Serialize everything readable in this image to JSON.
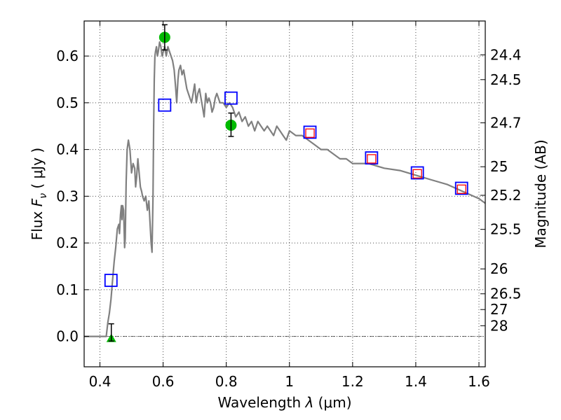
{
  "chart_data": {
    "type": "scatter",
    "xlabel": {
      "prefix": "Wavelength  ",
      "symbol": "λ",
      "unit": " (μm)"
    },
    "ylabel": {
      "prefix": "Flux  ",
      "symbol": "F",
      "subscript": "ν",
      "unit": "  ( μJy )"
    },
    "y2label": "Magnitude (AB)",
    "xlim": [
      0.35,
      1.62
    ],
    "ylim": [
      -0.065,
      0.675
    ],
    "grid": true,
    "x_ticks": [
      0.4,
      0.6,
      0.8,
      1.0,
      1.2,
      1.4,
      1.6
    ],
    "x_tick_labels": [
      "0.4",
      "0.6",
      "0.8",
      "1",
      "1.2",
      "1.4",
      "1.6"
    ],
    "y_ticks": [
      0.0,
      0.1,
      0.2,
      0.3,
      0.4,
      0.5,
      0.6
    ],
    "y_tick_labels": [
      "0.0",
      "0.1",
      "0.2",
      "0.3",
      "0.4",
      "0.5",
      "0.6"
    ],
    "y2_ticks": [
      {
        "label": "24.4",
        "flux": 0.6026
      },
      {
        "label": "24.5",
        "flux": 0.5495
      },
      {
        "label": "24.7",
        "flux": 0.4571
      },
      {
        "label": "25",
        "flux": 0.3631
      },
      {
        "label": "25.2",
        "flux": 0.302
      },
      {
        "label": "25.5",
        "flux": 0.2291
      },
      {
        "label": "26",
        "flux": 0.1445
      },
      {
        "label": "26.5",
        "flux": 0.0912
      },
      {
        "label": "27",
        "flux": 0.0575
      },
      {
        "label": "28",
        "flux": 0.0229
      }
    ],
    "series": [
      {
        "type": "line",
        "color": "#808080",
        "x": [
          0.35,
          0.42,
          0.425,
          0.43,
          0.435,
          0.44,
          0.445,
          0.45,
          0.455,
          0.46,
          0.462,
          0.465,
          0.468,
          0.47,
          0.472,
          0.475,
          0.478,
          0.48,
          0.483,
          0.486,
          0.49,
          0.495,
          0.5,
          0.505,
          0.51,
          0.513,
          0.516,
          0.52,
          0.524,
          0.528,
          0.532,
          0.535,
          0.54,
          0.545,
          0.55,
          0.555,
          0.558,
          0.562,
          0.565,
          0.568,
          0.57,
          0.572,
          0.574,
          0.576,
          0.579,
          0.582,
          0.585,
          0.589,
          0.593,
          0.597,
          0.601,
          0.605,
          0.61,
          0.615,
          0.62,
          0.625,
          0.63,
          0.635,
          0.64,
          0.643,
          0.647,
          0.65,
          0.655,
          0.66,
          0.665,
          0.67,
          0.675,
          0.68,
          0.69,
          0.695,
          0.7,
          0.705,
          0.71,
          0.715,
          0.72,
          0.725,
          0.73,
          0.735,
          0.74,
          0.745,
          0.75,
          0.755,
          0.76,
          0.765,
          0.77,
          0.78,
          0.79,
          0.8,
          0.81,
          0.82,
          0.83,
          0.84,
          0.85,
          0.86,
          0.87,
          0.88,
          0.89,
          0.9,
          0.91,
          0.92,
          0.93,
          0.94,
          0.95,
          0.96,
          0.97,
          0.98,
          0.99,
          1.0,
          1.02,
          1.04,
          1.06,
          1.08,
          1.1,
          1.12,
          1.14,
          1.16,
          1.18,
          1.2,
          1.25,
          1.3,
          1.35,
          1.4,
          1.45,
          1.5,
          1.55,
          1.6,
          1.62
        ],
        "y": [
          0.0,
          0.0,
          0.03,
          0.05,
          0.08,
          0.12,
          0.16,
          0.19,
          0.23,
          0.24,
          0.22,
          0.26,
          0.28,
          0.25,
          0.28,
          0.27,
          0.19,
          0.21,
          0.33,
          0.4,
          0.42,
          0.4,
          0.35,
          0.37,
          0.36,
          0.32,
          0.34,
          0.38,
          0.35,
          0.32,
          0.31,
          0.3,
          0.29,
          0.3,
          0.27,
          0.29,
          0.25,
          0.2,
          0.18,
          0.3,
          0.45,
          0.55,
          0.6,
          0.61,
          0.62,
          0.6,
          0.61,
          0.63,
          0.62,
          0.6,
          0.61,
          0.62,
          0.6,
          0.62,
          0.61,
          0.6,
          0.59,
          0.57,
          0.53,
          0.5,
          0.55,
          0.57,
          0.58,
          0.56,
          0.57,
          0.55,
          0.53,
          0.52,
          0.5,
          0.52,
          0.54,
          0.5,
          0.52,
          0.53,
          0.51,
          0.49,
          0.47,
          0.52,
          0.5,
          0.51,
          0.5,
          0.48,
          0.49,
          0.51,
          0.52,
          0.5,
          0.5,
          0.49,
          0.5,
          0.49,
          0.47,
          0.48,
          0.46,
          0.47,
          0.45,
          0.46,
          0.44,
          0.46,
          0.45,
          0.44,
          0.45,
          0.44,
          0.43,
          0.45,
          0.44,
          0.43,
          0.42,
          0.44,
          0.43,
          0.43,
          0.42,
          0.41,
          0.4,
          0.4,
          0.39,
          0.38,
          0.38,
          0.37,
          0.37,
          0.36,
          0.355,
          0.345,
          0.335,
          0.325,
          0.31,
          0.295,
          0.285
        ]
      },
      {
        "type": "marker",
        "marker": "square",
        "color": "#0000ff",
        "x": [
          0.435,
          0.605,
          0.815,
          1.065,
          1.26,
          1.405,
          1.545
        ],
        "y": [
          0.12,
          0.495,
          0.51,
          0.437,
          0.382,
          0.35,
          0.317
        ]
      },
      {
        "type": "marker",
        "marker": "small-square",
        "color": "#ff0000",
        "x": [
          1.065,
          1.26,
          1.405,
          1.545
        ],
        "y": [
          0.435,
          0.38,
          0.348,
          0.315
        ]
      },
      {
        "type": "marker",
        "marker": "circle",
        "color": "#00bb00",
        "x": [
          0.605,
          0.815
        ],
        "y": [
          0.64,
          0.452
        ]
      },
      {
        "type": "marker",
        "marker": "triangle",
        "color": "#00bb00",
        "x": [
          0.436
        ],
        "y": [
          -0.003
        ]
      },
      {
        "type": "errorbars",
        "color": "#000000",
        "points": [
          {
            "x": 0.436,
            "y": -0.003,
            "low": -0.01,
            "high": 0.027
          },
          {
            "x": 0.605,
            "y": 0.64,
            "low": 0.613,
            "high": 0.667
          },
          {
            "x": 0.815,
            "y": 0.452,
            "low": 0.428,
            "high": 0.478
          }
        ]
      }
    ],
    "zero_line": 0.0
  }
}
